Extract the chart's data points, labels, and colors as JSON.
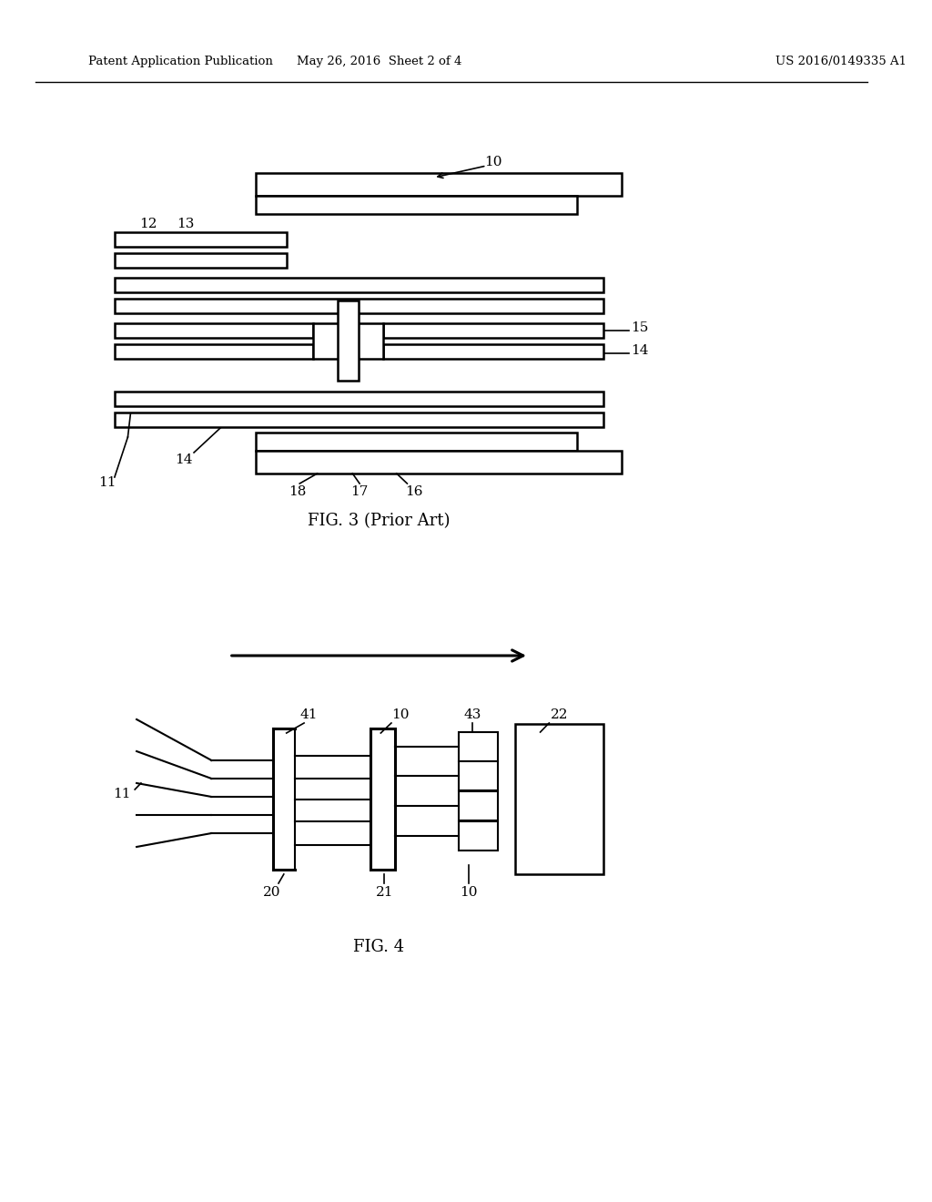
{
  "bg_color": "#ffffff",
  "line_color": "#000000",
  "header_left": "Patent Application Publication",
  "header_mid": "May 26, 2016  Sheet 2 of 4",
  "header_right": "US 2016/0149335 A1",
  "fig3_caption": "FIG. 3 (Prior Art)",
  "fig4_caption": "FIG. 4"
}
